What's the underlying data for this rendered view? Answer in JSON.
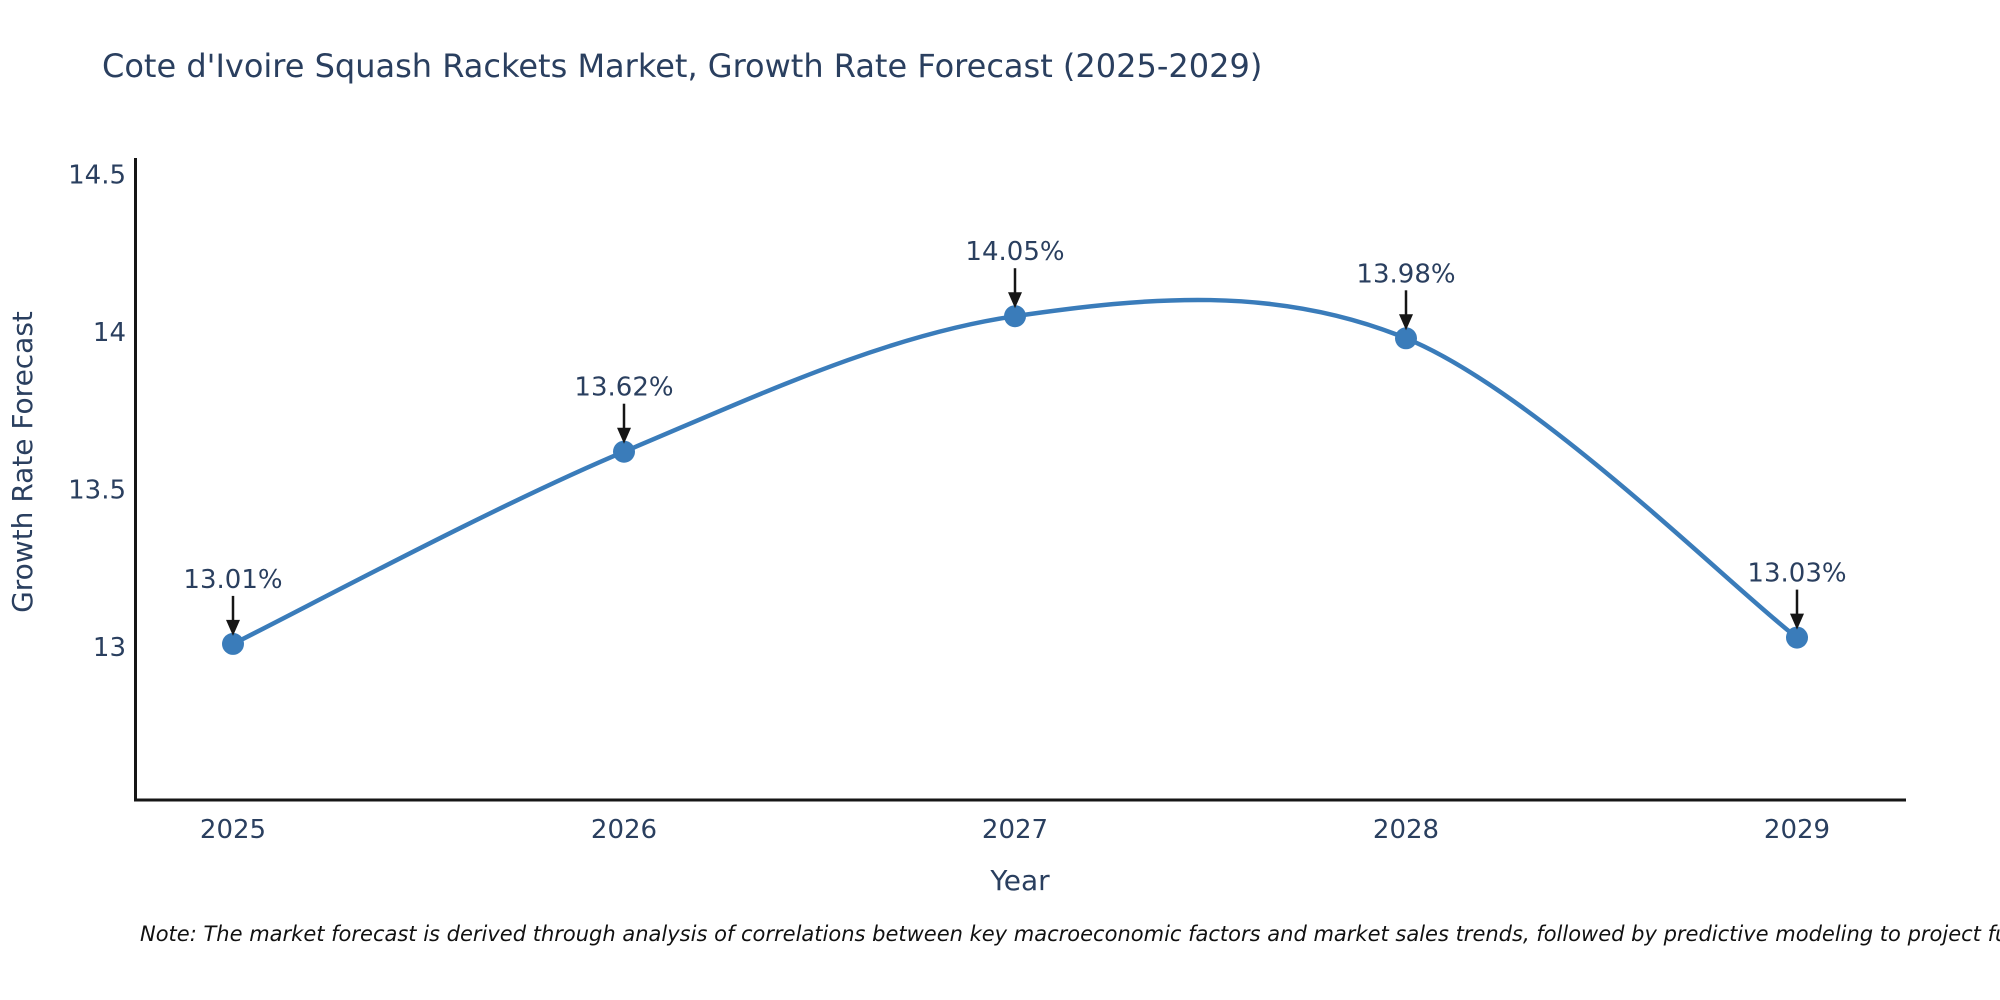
{
  "chart_data": {
    "type": "line",
    "title": "Cote d'Ivoire Squash Rackets Market, Growth Rate Forecast (2025-2029)",
    "xlabel": "Year",
    "ylabel": "Growth Rate Forecast",
    "x": [
      2025,
      2026,
      2027,
      2028,
      2029
    ],
    "x_tick_labels": [
      "2025",
      "2026",
      "2027",
      "2028",
      "2029"
    ],
    "series": [
      {
        "name": "Growth Rate Forecast",
        "values": [
          13.01,
          13.62,
          14.05,
          13.98,
          13.03
        ]
      }
    ],
    "point_labels": [
      "13.01%",
      "13.62%",
      "14.05%",
      "13.98%",
      "13.03%"
    ],
    "y_tick_labels": [
      "13",
      "13.5",
      "14",
      "14.5"
    ],
    "ylim": [
      12.55,
      14.55
    ],
    "line_shape": "spline",
    "markers": true,
    "grid": false,
    "legend": "none",
    "annotations": "percentage value labels with black down-arrows above each data point"
  },
  "note": "Note: The market forecast is derived through analysis of correlations between key macroeconomic factors and market sales trends, followed by predictive modeling to project future sal",
  "colors": {
    "accent_line": "#3a7cba",
    "title_text": "#2a3f5f",
    "axis_text": "#2a3f5f",
    "spine": "#161616",
    "annotation_arrow": "#161616",
    "note_text": "#111111",
    "background": "#ffffff"
  }
}
